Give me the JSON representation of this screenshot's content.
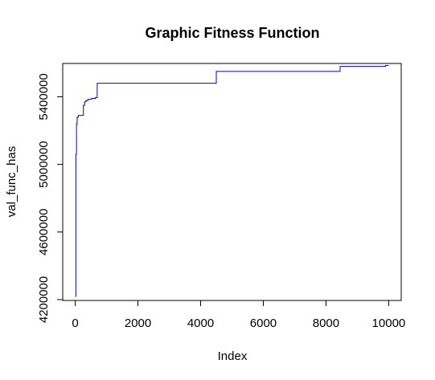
{
  "chart_data": {
    "type": "line",
    "title": "Graphic Fitness Function",
    "xlabel": "Index",
    "ylabel": "val_func_has",
    "xlim": [
      -400,
      10400
    ],
    "ylim": [
      4195000,
      5597000
    ],
    "x_ticks": [
      0,
      2000,
      4000,
      6000,
      8000,
      10000
    ],
    "x_tick_labels": [
      "0",
      "2000",
      "4000",
      "6000",
      "8000",
      "10000"
    ],
    "y_ticks": [
      4200000,
      4600000,
      5000000,
      5400000
    ],
    "y_tick_labels": [
      "4200000",
      "4600000",
      "5000000",
      "5400000"
    ],
    "grid": false,
    "line_style": "step",
    "series": [
      {
        "color": "#0000cc",
        "x": [
          0,
          20,
          40,
          60,
          100,
          150,
          260,
          300,
          330,
          370,
          420,
          520,
          640,
          700,
          4500,
          8450,
          9900,
          10000
        ],
        "y": [
          4220000,
          5060000,
          5240000,
          5280000,
          5290000,
          5290000,
          5350000,
          5370000,
          5375000,
          5380000,
          5385000,
          5390000,
          5395000,
          5480000,
          5550000,
          5580000,
          5585000,
          5585000
        ]
      }
    ]
  }
}
